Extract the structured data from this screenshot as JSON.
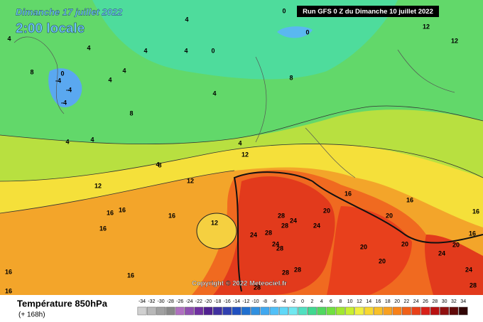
{
  "header": {
    "date": "Dimanche 17 juillet 2022",
    "time": "2:00 locale",
    "run": "Run GFS 0 Z du Dimanche 10 juillet 2022"
  },
  "copyright": "Copyright © 2022 Meteociel.fr",
  "footer": {
    "title": "Température 850hPa",
    "subtitle": "(+ 168h)"
  },
  "scale": {
    "labels": [
      -34,
      -32,
      -30,
      -28,
      -26,
      -24,
      -22,
      -20,
      -18,
      -16,
      -14,
      -12,
      -10,
      -8,
      -6,
      -4,
      -2,
      0,
      2,
      4,
      6,
      8,
      10,
      12,
      14,
      16,
      18,
      20,
      22,
      24,
      26,
      28,
      30,
      32,
      34
    ],
    "colors": [
      "#d0d0d0",
      "#b8b8b8",
      "#a0a0a0",
      "#888888",
      "#b070c0",
      "#9050b0",
      "#7030a0",
      "#502090",
      "#4030a0",
      "#3040b0",
      "#2050c0",
      "#2070d0",
      "#3090e0",
      "#40a8f0",
      "#50c0f8",
      "#60d8f8",
      "#70e8f0",
      "#50e0c0",
      "#40d890",
      "#50d860",
      "#70e040",
      "#a0e830",
      "#c8f030",
      "#f0f040",
      "#f8d830",
      "#f8c028",
      "#f8a020",
      "#f88018",
      "#f06018",
      "#e84018",
      "#d82018",
      "#b81010",
      "#901010",
      "#600808",
      "#300404"
    ]
  },
  "contour_labels": [
    "0",
    "0",
    "0",
    "0",
    "-4",
    "-4",
    "-4",
    "4",
    "4",
    "4",
    "4",
    "4",
    "4",
    "4",
    "4",
    "4",
    "4",
    "4",
    "4",
    "8",
    "8",
    "8",
    "8",
    "12",
    "12",
    "12",
    "12",
    "12",
    "12",
    "16",
    "16",
    "16",
    "16",
    "16",
    "16",
    "16",
    "16",
    "16",
    "16",
    "16",
    "20",
    "20",
    "20",
    "20",
    "20",
    "20",
    "24",
    "24",
    "24",
    "24",
    "24",
    "24",
    "28",
    "28",
    "28",
    "28",
    "28",
    "28",
    "28",
    "28"
  ]
}
